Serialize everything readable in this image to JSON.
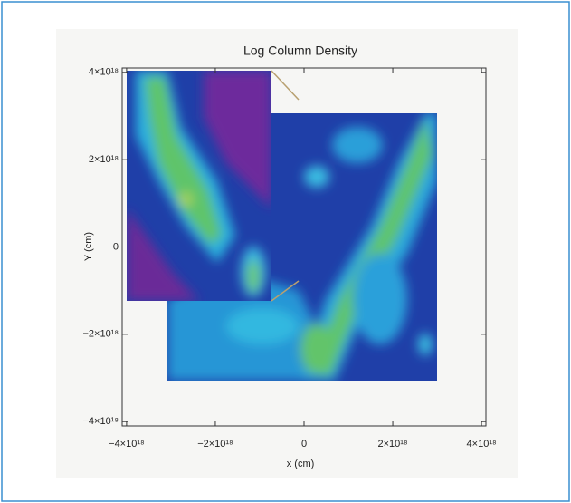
{
  "chart_data": {
    "type": "image",
    "title": "Log Column Density",
    "xlabel": "x (cm)",
    "ylabel": "Y (cm)",
    "xlim": [
      -4.1e+18,
      4.1e+18
    ],
    "ylim": [
      -4.1e+18,
      4.1e+18
    ],
    "xticks": [
      {
        "value": -4e+18,
        "label": "−4×10¹⁸"
      },
      {
        "value": -2e+18,
        "label": "−2×10¹⁸"
      },
      0,
      {
        "value": 2e+18,
        "label": "2×10¹⁸"
      },
      {
        "value": 4e+18,
        "label": "4×10¹⁸"
      }
    ],
    "yticks": [
      {
        "value": -4e+18,
        "label": "−4×10¹⁸"
      },
      {
        "value": -2e+18,
        "label": "−2×10¹⁸"
      },
      0,
      {
        "value": 2e+18,
        "label": "2×10¹⁸"
      },
      {
        "value": 4e+18,
        "label": "4×10¹⁸"
      }
    ]
  }
}
